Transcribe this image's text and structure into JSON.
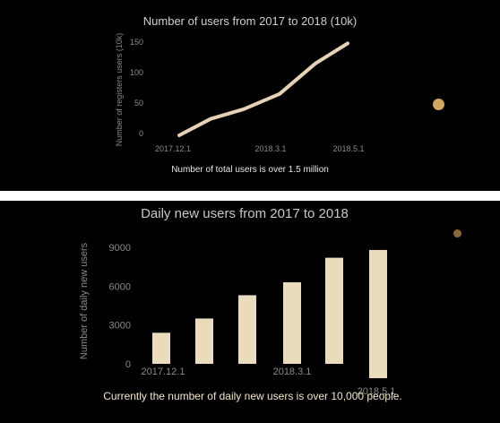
{
  "colors": {
    "background": "#000000",
    "separator": "#ffffff",
    "line": "#e6d3b3",
    "bar": "#ebdbbd",
    "text": "#d9d9d9",
    "muted": "#8a8a8a",
    "dot": "#d2a860"
  },
  "chart_data": [
    {
      "type": "line",
      "title": "Number of users from 2017 to 2018 (10k)",
      "ylabel": "Number of registers users (10k)",
      "xlabel": "",
      "x_ticks": [
        "2017.12.1",
        "2018.3.1",
        "2018.5.1"
      ],
      "y_ticks": [
        0,
        50,
        100,
        150
      ],
      "ylim": [
        0,
        160
      ],
      "x": [
        "2017.12.1",
        "2018.1.1",
        "2018.2.1",
        "2018.3.1",
        "2018.4.1",
        "2018.5.1"
      ],
      "values": [
        -3,
        24,
        40,
        65,
        115,
        148
      ],
      "grid": false,
      "caption": "Number of total users is over 1.5 million"
    },
    {
      "type": "bar",
      "title": "Daily new users from 2017 to 2018",
      "ylabel": "Number of daily new users",
      "xlabel": "",
      "x_ticks": [
        "2017.12.1",
        "2018.3.1",
        "2018.5.1"
      ],
      "y_ticks": [
        0,
        3000,
        6000,
        9000
      ],
      "ylim": [
        0,
        9500
      ],
      "categories": [
        "2017.12.1",
        "2018.1.1",
        "2018.2.1",
        "2018.3.1",
        "2018.4.1",
        "2018.5.1"
      ],
      "values": [
        2400,
        3500,
        5300,
        6300,
        8200,
        8800
      ],
      "grid": false,
      "caption": "Currently the number of daily new  users is over 10,000 people."
    }
  ]
}
